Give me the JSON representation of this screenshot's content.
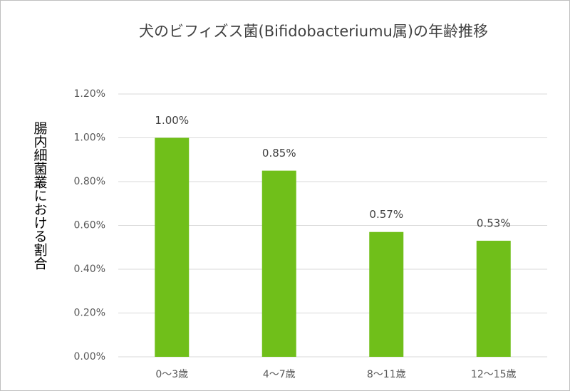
{
  "chart_data": {
    "type": "bar",
    "title": "犬のビフィズス菌(Bifidobacteriumu属)の年齢推移",
    "y_label": "腸内細菌叢における割合",
    "categories": [
      "0～3歳",
      "4～7歳",
      "8～11歳",
      "12～15歳"
    ],
    "values": [
      1.0,
      0.85,
      0.57,
      0.53
    ],
    "value_labels": [
      "1.00%",
      "0.85%",
      "0.57%",
      "0.53%"
    ],
    "color": "#70bf1a",
    "ylim": [
      0,
      1.2
    ],
    "yticks": [
      {
        "value": 0,
        "label": "0.00%"
      },
      {
        "value": 0.2,
        "label": "0.20%"
      },
      {
        "value": 0.4,
        "label": "0.40%"
      },
      {
        "value": 0.6,
        "label": "0.60%"
      },
      {
        "value": 0.8,
        "label": "0.80%"
      },
      {
        "value": 1.0,
        "label": "1.00%"
      },
      {
        "value": 1.2,
        "label": "1.20%"
      }
    ],
    "grid": true
  }
}
